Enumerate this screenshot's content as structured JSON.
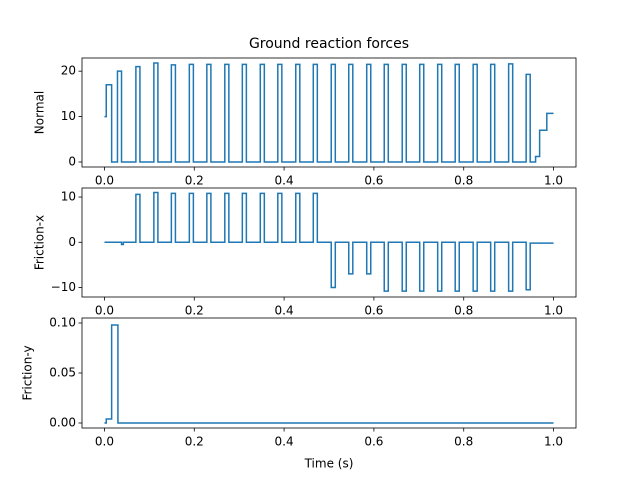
{
  "chart_data": [
    {
      "type": "line",
      "title": "Ground reaction forces",
      "ylabel": "Normal",
      "color": "#1f77b4",
      "drawstyle": "steps-post",
      "x": [
        0,
        0.004,
        0.016,
        0.029,
        0.038,
        0.07,
        0.079,
        0.11,
        0.119,
        0.149,
        0.158,
        0.189,
        0.198,
        0.228,
        0.237,
        0.268,
        0.277,
        0.307,
        0.316,
        0.347,
        0.356,
        0.386,
        0.395,
        0.426,
        0.435,
        0.465,
        0.474,
        0.505,
        0.514,
        0.544,
        0.553,
        0.584,
        0.593,
        0.623,
        0.632,
        0.663,
        0.672,
        0.702,
        0.711,
        0.742,
        0.751,
        0.781,
        0.79,
        0.821,
        0.83,
        0.86,
        0.869,
        0.9,
        0.909,
        0.939,
        0.948,
        0.96,
        0.969,
        0.985,
        1.0
      ],
      "values": [
        10,
        17,
        0,
        20,
        0,
        21,
        0,
        21.8,
        0,
        21.4,
        0,
        21.5,
        0,
        21.5,
        0,
        21.5,
        0,
        21.5,
        0,
        21.5,
        0,
        21.5,
        0,
        21.5,
        0,
        21.5,
        0,
        21.5,
        0,
        21.5,
        0,
        21.5,
        0,
        21.5,
        0,
        21.5,
        0,
        21.5,
        0,
        21.5,
        0,
        21.5,
        0,
        21.5,
        0,
        21.5,
        0,
        21.6,
        0,
        19.3,
        0,
        1.2,
        7,
        10.7,
        10.7
      ],
      "xlim": [
        -0.05,
        1.05
      ],
      "ylim": [
        -1.1,
        22.9
      ],
      "xticks": [
        {
          "value": 0,
          "label": "0.0"
        },
        {
          "value": 0.2,
          "label": "0.2"
        },
        {
          "value": 0.4,
          "label": "0.4"
        },
        {
          "value": 0.6,
          "label": "0.6"
        },
        {
          "value": 0.8,
          "label": "0.8"
        },
        {
          "value": 1,
          "label": "1.0"
        }
      ],
      "yticks": [
        0,
        10,
        20
      ]
    },
    {
      "type": "line",
      "ylabel": "Friction-x",
      "color": "#1f77b4",
      "drawstyle": "steps-post",
      "x": [
        0,
        0.038,
        0.042,
        0.07,
        0.079,
        0.11,
        0.119,
        0.149,
        0.158,
        0.189,
        0.198,
        0.228,
        0.237,
        0.268,
        0.277,
        0.307,
        0.316,
        0.347,
        0.356,
        0.386,
        0.395,
        0.426,
        0.435,
        0.465,
        0.474,
        0.505,
        0.514,
        0.544,
        0.553,
        0.584,
        0.593,
        0.623,
        0.632,
        0.663,
        0.672,
        0.702,
        0.711,
        0.742,
        0.751,
        0.781,
        0.79,
        0.821,
        0.83,
        0.86,
        0.869,
        0.9,
        0.909,
        0.939,
        0.948,
        1.0
      ],
      "values": [
        0,
        -0.5,
        0,
        10.6,
        0,
        11,
        0,
        10.8,
        0,
        10.8,
        0,
        10.8,
        0,
        10.8,
        0,
        10.8,
        0,
        10.8,
        0,
        10.8,
        0,
        10.8,
        0,
        10.8,
        0,
        -10,
        0,
        -7,
        0,
        -7,
        0,
        -10.8,
        0,
        -10.8,
        0,
        -10.8,
        0,
        -10.8,
        0,
        -10.8,
        0,
        -10.8,
        0,
        -10.8,
        0,
        -10.8,
        0,
        -10.5,
        -0.2,
        -0.2
      ],
      "xlim": [
        -0.05,
        1.05
      ],
      "ylim": [
        -12.1,
        12
      ],
      "xticks": [
        {
          "value": 0,
          "label": "0.0"
        },
        {
          "value": 0.2,
          "label": "0.2"
        },
        {
          "value": 0.4,
          "label": "0.4"
        },
        {
          "value": 0.6,
          "label": "0.6"
        },
        {
          "value": 0.8,
          "label": "0.8"
        },
        {
          "value": 1,
          "label": "1.0"
        }
      ],
      "yticks": [
        {
          "value": -10,
          "label": "−10"
        },
        0,
        10
      ]
    },
    {
      "type": "line",
      "ylabel": "Friction-y",
      "xlabel": "Time (s)",
      "color": "#1f77b4",
      "drawstyle": "steps-post",
      "x": [
        0,
        0.004,
        0.016,
        0.03,
        1.0
      ],
      "values": [
        0,
        0.004,
        0.098,
        0,
        0
      ],
      "xlim": [
        -0.05,
        1.05
      ],
      "ylim": [
        -0.005,
        0.105
      ],
      "xticks": [
        {
          "value": 0,
          "label": "0.0"
        },
        {
          "value": 0.2,
          "label": "0.2"
        },
        {
          "value": 0.4,
          "label": "0.4"
        },
        {
          "value": 0.6,
          "label": "0.6"
        },
        {
          "value": 0.8,
          "label": "0.8"
        },
        {
          "value": 1,
          "label": "1.0"
        }
      ],
      "yticks": [
        {
          "value": 0,
          "label": "0.00"
        },
        {
          "value": 0.05,
          "label": "0.05"
        },
        {
          "value": 0.1,
          "label": "0.10"
        }
      ]
    }
  ]
}
